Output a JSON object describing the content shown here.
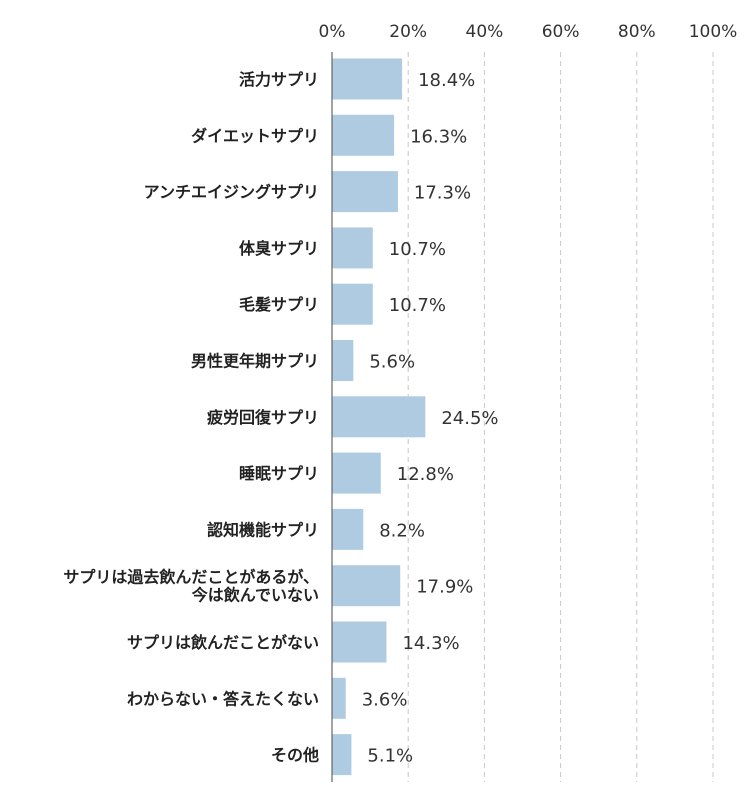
{
  "chart_data": {
    "type": "bar",
    "orientation": "horizontal",
    "title": "",
    "xlabel": "",
    "ylabel": "",
    "xlim": [
      0,
      100
    ],
    "ticks": [
      "0%",
      "20%",
      "40%",
      "60%",
      "80%",
      "100%"
    ],
    "grid": true,
    "legend": "none",
    "colors": {
      "bar": "#aecbe1",
      "grid": "#c8c8c8",
      "axis": "#666666",
      "text": "#333333"
    },
    "categories": [
      [
        "活力サプリ"
      ],
      [
        "ダイエットサプリ"
      ],
      [
        "アンチエイジングサプリ"
      ],
      [
        "体臭サプリ"
      ],
      [
        "毛髪サプリ"
      ],
      [
        "男性更年期サプリ"
      ],
      [
        "疲労回復サプリ"
      ],
      [
        "睡眠サプリ"
      ],
      [
        "認知機能サプリ"
      ],
      [
        "サプリは過去飲んだことがあるが、",
        "今は飲んでいない"
      ],
      [
        "サプリは飲んだことがない"
      ],
      [
        "わからない・答えたくない"
      ],
      [
        "その他"
      ]
    ],
    "values": [
      18.4,
      16.3,
      17.3,
      10.7,
      10.7,
      5.6,
      24.5,
      12.8,
      8.2,
      17.9,
      14.3,
      3.6,
      5.1
    ],
    "value_labels": [
      "18.4%",
      "16.3%",
      "17.3%",
      "10.7%",
      "10.7%",
      "5.6%",
      "24.5%",
      "12.8%",
      "8.2%",
      "17.9%",
      "14.3%",
      "3.6%",
      "5.1%"
    ]
  }
}
